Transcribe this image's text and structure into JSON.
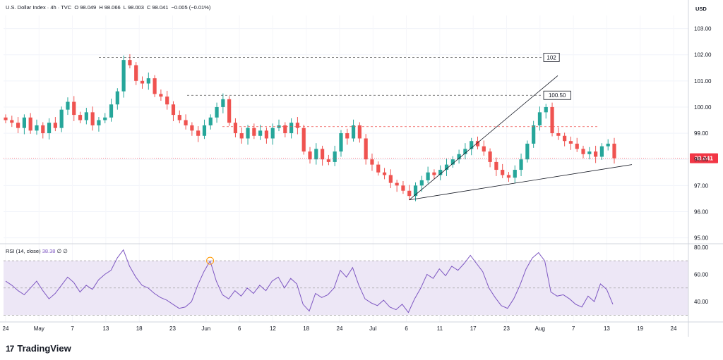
{
  "header": {
    "symbol": "U.S. Dollar Index · 4h · TVC",
    "open_label": "O",
    "open": "98.049",
    "high_label": "H",
    "high": "98.066",
    "low_label": "L",
    "low": "98.003",
    "close_label": "C",
    "close": "98.041",
    "change": "−0.005 (−0.01%)"
  },
  "currency": "USD",
  "rsi_header": {
    "label": "RSI (14, close)",
    "value": "38.38",
    "extra": "∅ ∅"
  },
  "footer": {
    "brand": "TradingView",
    "logo_glyph": "17"
  },
  "colors": {
    "up": "#26a69a",
    "down": "#ef5350",
    "rsi": "#7e57c2",
    "rsi_band": "#ede7f6",
    "price_tag": "#f23645",
    "trend": "#131722"
  },
  "chart_data": [
    {
      "type": "candlestick",
      "x_axis": {
        "tick_labels": [
          "24",
          "May",
          "7",
          "13",
          "18",
          "23",
          "Jun",
          "6",
          "12",
          "18",
          "24",
          "Jul",
          "6",
          "11",
          "17",
          "23",
          "Aug",
          "7",
          "13",
          "19",
          "24"
        ]
      },
      "y_axis": {
        "side": "right",
        "range": [
          94.8,
          103.5
        ],
        "tick_labels": [
          "103.00",
          "102.00",
          "101.00",
          "100.00",
          "99.00",
          "98.00",
          "97.00",
          "96.00",
          "95.00"
        ]
      },
      "last_price": "98.041",
      "level_lines": [
        {
          "label": "102",
          "value": 101.9
        },
        {
          "label": "100.50",
          "value": 100.45
        },
        {
          "label": "",
          "value": 99.25
        }
      ],
      "close_path": [
        99.5,
        99.4,
        99.2,
        99.6,
        99.1,
        99.3,
        99.0,
        99.4,
        99.2,
        99.9,
        100.2,
        99.7,
        99.5,
        99.8,
        99.3,
        99.5,
        99.6,
        100.1,
        100.6,
        101.8,
        101.6,
        101.0,
        100.9,
        101.1,
        100.5,
        100.4,
        100.1,
        99.7,
        99.5,
        99.3,
        99.1,
        98.9,
        99.3,
        99.6,
        100.0,
        100.3,
        99.4,
        99.0,
        98.8,
        99.2,
        98.9,
        99.1,
        98.8,
        99.2,
        99.3,
        99.0,
        99.4,
        99.2,
        98.3,
        98.0,
        98.4,
        98.0,
        97.9,
        98.3,
        99.0,
        98.8,
        99.3,
        98.8,
        98.0,
        97.8,
        97.5,
        97.4,
        97.1,
        97.0,
        96.8,
        96.6,
        97.0,
        97.2,
        97.5,
        97.4,
        97.6,
        97.8,
        98.0,
        98.2,
        98.4,
        98.7,
        98.5,
        98.3,
        97.9,
        97.6,
        97.4,
        97.3,
        97.6,
        98.0,
        98.6,
        99.3,
        99.8,
        100.0,
        99.0,
        98.9,
        98.7,
        98.6,
        98.4,
        98.2,
        98.3,
        98.1,
        98.5,
        98.6,
        98.04
      ]
    },
    {
      "type": "line",
      "name": "RSI (14, close)",
      "y_axis": {
        "side": "right",
        "range": [
          25,
          82
        ],
        "tick_labels": [
          "80.00",
          "60.00",
          "40.00"
        ]
      },
      "bands": {
        "upper": 70,
        "middle": 50,
        "lower": 30
      },
      "values": [
        55,
        52,
        48,
        45,
        50,
        55,
        48,
        42,
        46,
        52,
        58,
        54,
        47,
        52,
        49,
        56,
        60,
        63,
        72,
        78,
        66,
        58,
        52,
        50,
        46,
        43,
        41,
        38,
        35,
        36,
        40,
        52,
        62,
        70,
        55,
        45,
        42,
        48,
        44,
        50,
        46,
        52,
        48,
        55,
        58,
        50,
        57,
        53,
        38,
        33,
        46,
        43,
        45,
        50,
        63,
        58,
        65,
        52,
        42,
        39,
        37,
        41,
        36,
        34,
        38,
        32,
        42,
        50,
        60,
        57,
        64,
        59,
        66,
        63,
        68,
        74,
        68,
        62,
        50,
        43,
        37,
        35,
        42,
        52,
        64,
        72,
        76,
        70,
        47,
        44,
        45,
        42,
        38,
        36,
        44,
        40,
        53,
        49,
        38
      ]
    }
  ]
}
